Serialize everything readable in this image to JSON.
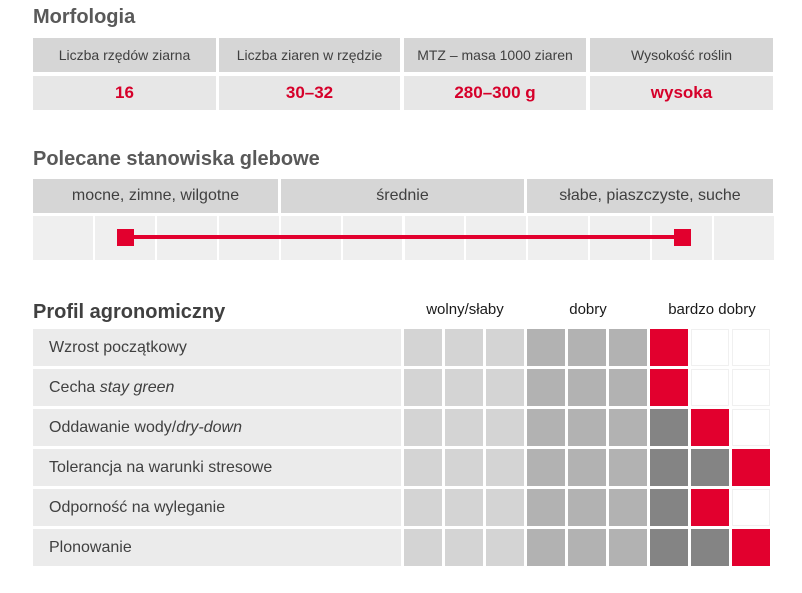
{
  "morphology": {
    "title": "Morfologia",
    "headers": [
      "Liczba rzędów ziarna",
      "Liczba ziaren w rzędzie",
      "MTZ – masa 1000 ziaren",
      "Wysokość roślin"
    ],
    "values": [
      "16",
      "30–32",
      "280–300 g",
      "wysoka"
    ]
  },
  "soil": {
    "title": "Polecane stanowiska glebowe",
    "categories": [
      "mocne, zimne, wilgotne",
      "średnie",
      "słabe, piaszczyste, suche"
    ],
    "range": {
      "from_segment": 1,
      "to_segment": 9,
      "total_segments": 12
    }
  },
  "profile": {
    "title": "Profil agronomiczny",
    "scale_labels": [
      "wolny/słaby",
      "dobry",
      "bardzo dobry"
    ],
    "traits": [
      {
        "label": "Wzrost początkowy",
        "italic_part": "",
        "score": 7
      },
      {
        "label": "Cecha ",
        "italic_part": "stay green",
        "score": 7
      },
      {
        "label": "Oddawanie wody/",
        "italic_part": "dry-down",
        "score": 8
      },
      {
        "label": "Tolerancja na warunki stresowe",
        "italic_part": "",
        "score": 9
      },
      {
        "label": "Odporność na wyleganie",
        "italic_part": "",
        "score": 8
      },
      {
        "label": "Plonowanie",
        "italic_part": "",
        "score": 9
      }
    ],
    "max_score": 9,
    "colors": {
      "weak": "#d4d4d4",
      "good": "#b2b2b2",
      "very_good_filled": "#848484",
      "current": "#e2002e",
      "empty": "#ffffff"
    }
  }
}
